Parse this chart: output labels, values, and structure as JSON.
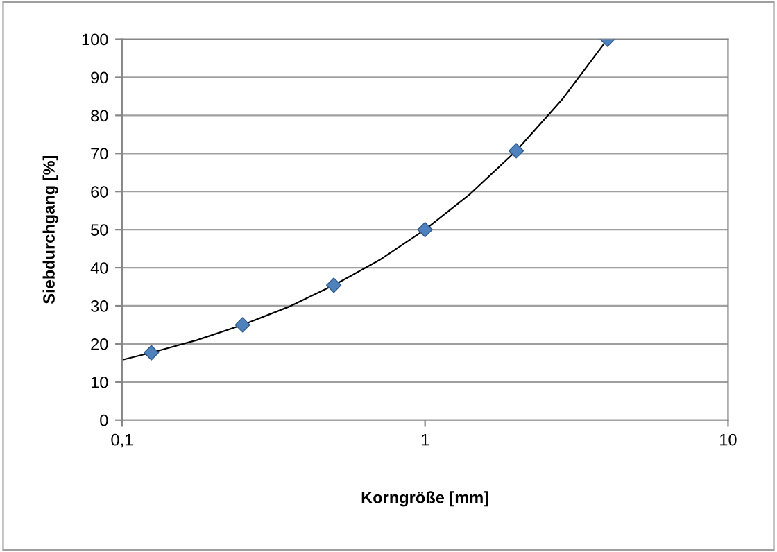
{
  "chart_data": {
    "type": "scatter",
    "xlabel": "Korngröße [mm]",
    "ylabel": "Siebdurchgang [%]",
    "log": "x",
    "grid": "y",
    "marker": "diamond",
    "xlim": [
      0.1,
      10
    ],
    "xticks": [
      {
        "value": 0.1,
        "label": "0,1"
      },
      1,
      10
    ],
    "ylim": [
      0,
      100
    ],
    "yticks": [
      0,
      10,
      20,
      30,
      40,
      50,
      60,
      70,
      80,
      90,
      100
    ],
    "x": [
      0.125,
      0.25,
      0.5,
      1,
      2,
      4
    ],
    "series": [
      {
        "color": "#4f81bd",
        "values": [
          17.7,
          25,
          35.4,
          50,
          70.7,
          100
        ]
      },
      {
        "type": "line",
        "color": "#000000",
        "marker": "none",
        "x": [
          0.1,
          0.125,
          0.177,
          0.25,
          0.354,
          0.5,
          0.707,
          1,
          1.41,
          2,
          2.83,
          4
        ],
        "values": [
          15.8,
          17.7,
          21.0,
          25,
          29.7,
          35.4,
          42.0,
          50,
          59.4,
          70.7,
          84.1,
          100
        ]
      }
    ]
  }
}
